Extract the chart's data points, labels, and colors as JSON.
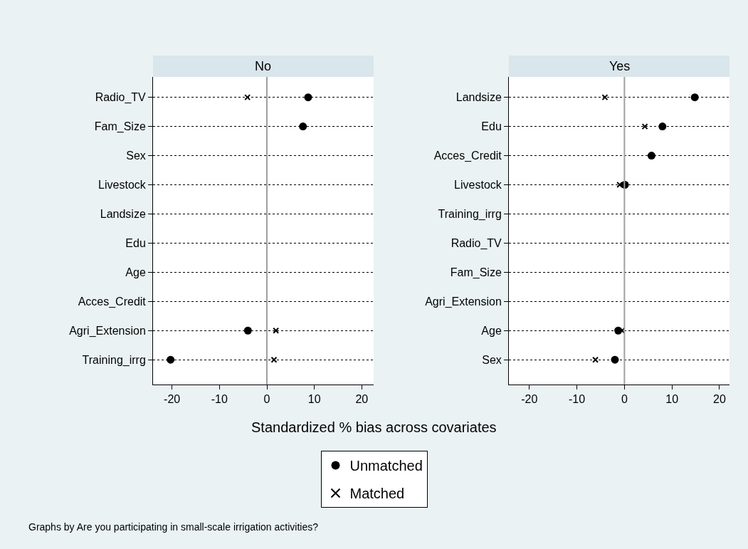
{
  "chart_data": [
    {
      "type": "scatter",
      "title": "No",
      "orientation": "horizontal",
      "xlabel": "Standardized % bias across covariates",
      "legend": "bottom",
      "grid": "y",
      "line_style": "dotted",
      "annotations": [
        "Graphs by Are you participating in small-scale irrigation activities?"
      ],
      "categories": [
        "Radio_TV",
        "Fam_Size",
        "Sex",
        "Livestock",
        "Landsize",
        "Edu",
        "Age",
        "Acces_Credit",
        "Agri_Extension",
        "Training_irrg"
      ],
      "series": [
        {
          "name": "Unmatched",
          "color": "#000000",
          "marker": "circle",
          "values": [
            8.7,
            7.6,
            null,
            null,
            null,
            null,
            null,
            null,
            -4.0,
            -20.3
          ]
        },
        {
          "name": "Matched",
          "color": "#000000",
          "marker": "cross",
          "values": [
            -4.1,
            null,
            null,
            null,
            null,
            null,
            null,
            null,
            1.9,
            1.5
          ]
        }
      ],
      "xlim": [
        -24,
        22.5
      ],
      "xticks": [
        -20,
        -10,
        0,
        10,
        20
      ],
      "ref_lines": [
        {
          "axis": "x",
          "value": 0,
          "color": "#a0a0a0"
        }
      ]
    },
    {
      "type": "scatter",
      "title": "Yes",
      "orientation": "horizontal",
      "grid": "y",
      "line_style": "dotted",
      "categories": [
        "Landsize",
        "Edu",
        "Acces_Credit",
        "Livestock",
        "Training_irrg",
        "Radio_TV",
        "Fam_Size",
        "Agri_Extension",
        "Age",
        "Sex"
      ],
      "series": [
        {
          "color": "#000000",
          "marker": "circle",
          "values": [
            14.8,
            8.0,
            5.7,
            0.1,
            null,
            null,
            null,
            null,
            -1.3,
            -2.0
          ]
        },
        {
          "color": "#000000",
          "marker": "cross",
          "values": [
            -4.1,
            4.3,
            null,
            -1.0,
            null,
            null,
            null,
            null,
            -0.5,
            -6.1
          ]
        }
      ],
      "xlim": [
        -24.3,
        22.1
      ],
      "xticks": [
        -20,
        -10,
        0,
        10,
        20
      ],
      "ref_lines": [
        {
          "axis": "x",
          "value": 0,
          "color": "#a0a0a0"
        }
      ]
    }
  ]
}
